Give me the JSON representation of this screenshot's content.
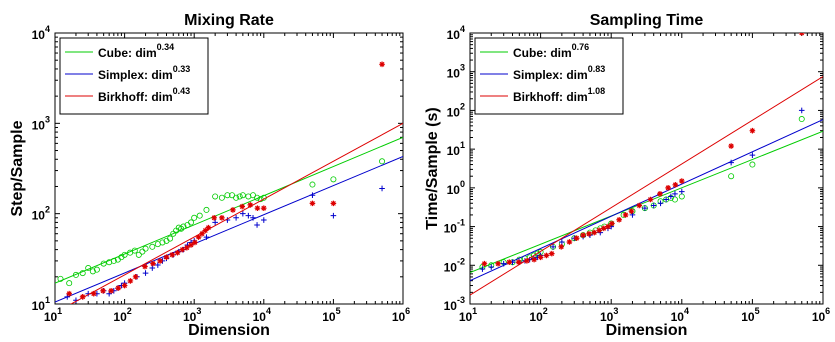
{
  "chart_data": [
    {
      "type": "scatter",
      "title": "Mixing Rate",
      "xlabel": "Dimension",
      "ylabel": "Step/Sample",
      "xscale": "log",
      "yscale": "log",
      "xlim": [
        10,
        1000000
      ],
      "ylim": [
        10,
        10000
      ],
      "xticks": [
        {
          "base": "10",
          "exp": "1"
        },
        {
          "base": "10",
          "exp": "2"
        },
        {
          "base": "10",
          "exp": "3"
        },
        {
          "base": "10",
          "exp": "4"
        },
        {
          "base": "10",
          "exp": "5"
        },
        {
          "base": "10",
          "exp": "6"
        }
      ],
      "yticks": [
        {
          "base": "10",
          "exp": "1"
        },
        {
          "base": "10",
          "exp": "2"
        },
        {
          "base": "10",
          "exp": "3"
        },
        {
          "base": "10",
          "exp": "4"
        }
      ],
      "legend_position": "top-left",
      "series": [
        {
          "name": "Cube: dim",
          "exponent": "0.34",
          "color": "#00cc00",
          "marker": "circle",
          "fit": [
            [
              10,
              17
            ],
            [
              1000000,
              700
            ]
          ],
          "points": [
            [
              12,
              19
            ],
            [
              16,
              17
            ],
            [
              20,
              21
            ],
            [
              25,
              22
            ],
            [
              30,
              25
            ],
            [
              35,
              23
            ],
            [
              40,
              24
            ],
            [
              50,
              28
            ],
            [
              60,
              29
            ],
            [
              70,
              30
            ],
            [
              80,
              31
            ],
            [
              90,
              33
            ],
            [
              100,
              35
            ],
            [
              120,
              37
            ],
            [
              140,
              39
            ],
            [
              160,
              35
            ],
            [
              180,
              38
            ],
            [
              200,
              41
            ],
            [
              250,
              43
            ],
            [
              300,
              46
            ],
            [
              350,
              48
            ],
            [
              400,
              50
            ],
            [
              450,
              53
            ],
            [
              500,
              60
            ],
            [
              550,
              65
            ],
            [
              600,
              70
            ],
            [
              650,
              68
            ],
            [
              700,
              72
            ],
            [
              800,
              75
            ],
            [
              900,
              80
            ],
            [
              1000,
              90
            ],
            [
              1200,
              95
            ],
            [
              1500,
              110
            ],
            [
              2000,
              155
            ],
            [
              2500,
              150
            ],
            [
              3000,
              160
            ],
            [
              3500,
              160
            ],
            [
              4000,
              150
            ],
            [
              4500,
              155
            ],
            [
              5000,
              160
            ],
            [
              6000,
              155
            ],
            [
              7000,
              160
            ],
            [
              8000,
              150
            ],
            [
              9000,
              145
            ],
            [
              10000,
              150
            ],
            [
              50000,
              210
            ],
            [
              100000,
              240
            ],
            [
              500000,
              380
            ]
          ]
        },
        {
          "name": "Simplex: dim",
          "exponent": "0.33",
          "color": "#0000cc",
          "marker": "plus",
          "fit": [
            [
              10,
              10.5
            ],
            [
              1000000,
              430
            ]
          ],
          "points": [
            [
              15,
              12
            ],
            [
              20,
              11
            ],
            [
              25,
              12
            ],
            [
              30,
              13
            ],
            [
              40,
              13
            ],
            [
              50,
              14
            ],
            [
              60,
              13
            ],
            [
              70,
              14
            ],
            [
              80,
              15
            ],
            [
              90,
              16
            ],
            [
              100,
              17
            ],
            [
              150,
              20
            ],
            [
              200,
              22
            ],
            [
              250,
              25
            ],
            [
              300,
              27
            ],
            [
              350,
              30
            ],
            [
              400,
              32
            ],
            [
              500,
              35
            ],
            [
              600,
              38
            ],
            [
              700,
              40
            ],
            [
              800,
              45
            ],
            [
              900,
              48
            ],
            [
              1000,
              50
            ],
            [
              1500,
              55
            ],
            [
              2000,
              80
            ],
            [
              3000,
              85
            ],
            [
              4000,
              90
            ],
            [
              5000,
              100
            ],
            [
              6000,
              95
            ],
            [
              7000,
              90
            ],
            [
              8000,
              75
            ],
            [
              10000,
              85
            ],
            [
              50000,
              160
            ],
            [
              100000,
              95
            ],
            [
              500000,
              190
            ]
          ]
        },
        {
          "name": "Birkhoff: dim",
          "exponent": "0.43",
          "color": "#dd0000",
          "marker": "star",
          "fit": [
            [
              10,
              8
            ],
            [
              1000000,
              1000
            ]
          ],
          "points": [
            [
              16,
              13
            ],
            [
              25,
              12
            ],
            [
              36,
              13
            ],
            [
              49,
              14
            ],
            [
              64,
              14
            ],
            [
              81,
              15
            ],
            [
              100,
              16
            ],
            [
              121,
              18
            ],
            [
              144,
              20
            ],
            [
              196,
              26
            ],
            [
              256,
              28
            ],
            [
              324,
              30
            ],
            [
              400,
              33
            ],
            [
              484,
              35
            ],
            [
              576,
              37
            ],
            [
              676,
              40
            ],
            [
              784,
              42
            ],
            [
              900,
              45
            ],
            [
              1024,
              48
            ],
            [
              1156,
              55
            ],
            [
              1296,
              60
            ],
            [
              1444,
              65
            ],
            [
              1600,
              70
            ],
            [
              1936,
              90
            ],
            [
              2500,
              90
            ],
            [
              3600,
              110
            ],
            [
              4900,
              120
            ],
            [
              6400,
              125
            ],
            [
              8100,
              115
            ],
            [
              10000,
              115
            ],
            [
              50000,
              130
            ],
            [
              100000,
              130
            ],
            [
              500000,
              4500
            ]
          ]
        }
      ]
    },
    {
      "type": "scatter",
      "title": "Sampling Time",
      "xlabel": "Dimension",
      "ylabel": "Time/Sample (s)",
      "xscale": "log",
      "yscale": "log",
      "xlim": [
        10,
        1000000
      ],
      "ylim": [
        0.001,
        10000
      ],
      "xticks": [
        {
          "base": "10",
          "exp": "1"
        },
        {
          "base": "10",
          "exp": "2"
        },
        {
          "base": "10",
          "exp": "3"
        },
        {
          "base": "10",
          "exp": "4"
        },
        {
          "base": "10",
          "exp": "5"
        },
        {
          "base": "10",
          "exp": "6"
        }
      ],
      "yticks": [
        {
          "base": "10",
          "exp": "-3"
        },
        {
          "base": "10",
          "exp": "-2"
        },
        {
          "base": "10",
          "exp": "-1"
        },
        {
          "base": "10",
          "exp": "0"
        },
        {
          "base": "10",
          "exp": "1"
        },
        {
          "base": "10",
          "exp": "2"
        },
        {
          "base": "10",
          "exp": "3"
        },
        {
          "base": "10",
          "exp": "4"
        }
      ],
      "legend_position": "top-left",
      "series": [
        {
          "name": "Cube: dim",
          "exponent": "0.76",
          "color": "#00cc00",
          "marker": "circle",
          "fit": [
            [
              10,
              0.0065
            ],
            [
              1000000,
              29
            ]
          ],
          "points": [
            [
              15,
              0.009
            ],
            [
              20,
              0.01
            ],
            [
              30,
              0.012
            ],
            [
              40,
              0.012
            ],
            [
              50,
              0.014
            ],
            [
              60,
              0.015
            ],
            [
              70,
              0.016
            ],
            [
              80,
              0.018
            ],
            [
              90,
              0.02
            ],
            [
              100,
              0.022
            ],
            [
              150,
              0.03
            ],
            [
              200,
              0.035
            ],
            [
              300,
              0.05
            ],
            [
              400,
              0.06
            ],
            [
              500,
              0.07
            ],
            [
              600,
              0.08
            ],
            [
              700,
              0.09
            ],
            [
              800,
              0.1
            ],
            [
              1000,
              0.12
            ],
            [
              1500,
              0.2
            ],
            [
              2000,
              0.25
            ],
            [
              3000,
              0.3
            ],
            [
              4000,
              0.35
            ],
            [
              5000,
              0.45
            ],
            [
              6000,
              0.5
            ],
            [
              7000,
              0.55
            ],
            [
              8000,
              0.5
            ],
            [
              10000,
              0.6
            ],
            [
              50000,
              2
            ],
            [
              100000,
              4
            ],
            [
              500000,
              60
            ]
          ]
        },
        {
          "name": "Simplex: dim",
          "exponent": "0.83",
          "color": "#0000cc",
          "marker": "plus",
          "fit": [
            [
              10,
              0.004
            ],
            [
              1000000,
              58
            ]
          ],
          "points": [
            [
              15,
              0.008
            ],
            [
              20,
              0.009
            ],
            [
              30,
              0.011
            ],
            [
              40,
              0.012
            ],
            [
              50,
              0.012
            ],
            [
              60,
              0.013
            ],
            [
              70,
              0.014
            ],
            [
              80,
              0.015
            ],
            [
              90,
              0.016
            ],
            [
              100,
              0.018
            ],
            [
              150,
              0.03
            ],
            [
              200,
              0.04
            ],
            [
              300,
              0.05
            ],
            [
              400,
              0.055
            ],
            [
              500,
              0.06
            ],
            [
              700,
              0.07
            ],
            [
              900,
              0.09
            ],
            [
              1000,
              0.1
            ],
            [
              2000,
              0.2
            ],
            [
              3000,
              0.3
            ],
            [
              4000,
              0.35
            ],
            [
              5000,
              0.4
            ],
            [
              6000,
              0.5
            ],
            [
              7000,
              0.6
            ],
            [
              8000,
              0.7
            ],
            [
              10000,
              0.8
            ],
            [
              50000,
              4.5
            ],
            [
              100000,
              7
            ],
            [
              500000,
              100
            ]
          ]
        },
        {
          "name": "Birkhoff: dim",
          "exponent": "1.08",
          "color": "#dd0000",
          "marker": "star",
          "fit": [
            [
              10,
              0.0017
            ],
            [
              1000000,
              750
            ]
          ],
          "points": [
            [
              16,
              0.011
            ],
            [
              25,
              0.011
            ],
            [
              36,
              0.012
            ],
            [
              49,
              0.012
            ],
            [
              64,
              0.013
            ],
            [
              81,
              0.014
            ],
            [
              100,
              0.016
            ],
            [
              121,
              0.018
            ],
            [
              144,
              0.02
            ],
            [
              196,
              0.03
            ],
            [
              256,
              0.04
            ],
            [
              324,
              0.05
            ],
            [
              400,
              0.06
            ],
            [
              484,
              0.065
            ],
            [
              576,
              0.07
            ],
            [
              676,
              0.08
            ],
            [
              784,
              0.09
            ],
            [
              900,
              0.1
            ],
            [
              1024,
              0.12
            ],
            [
              1296,
              0.15
            ],
            [
              1600,
              0.2
            ],
            [
              1936,
              0.25
            ],
            [
              2500,
              0.35
            ],
            [
              3600,
              0.5
            ],
            [
              4900,
              0.7
            ],
            [
              6400,
              1
            ],
            [
              8100,
              1.2
            ],
            [
              10000,
              1.5
            ],
            [
              50000,
              12
            ],
            [
              100000,
              30
            ],
            [
              500000,
              10000
            ]
          ]
        }
      ]
    }
  ]
}
